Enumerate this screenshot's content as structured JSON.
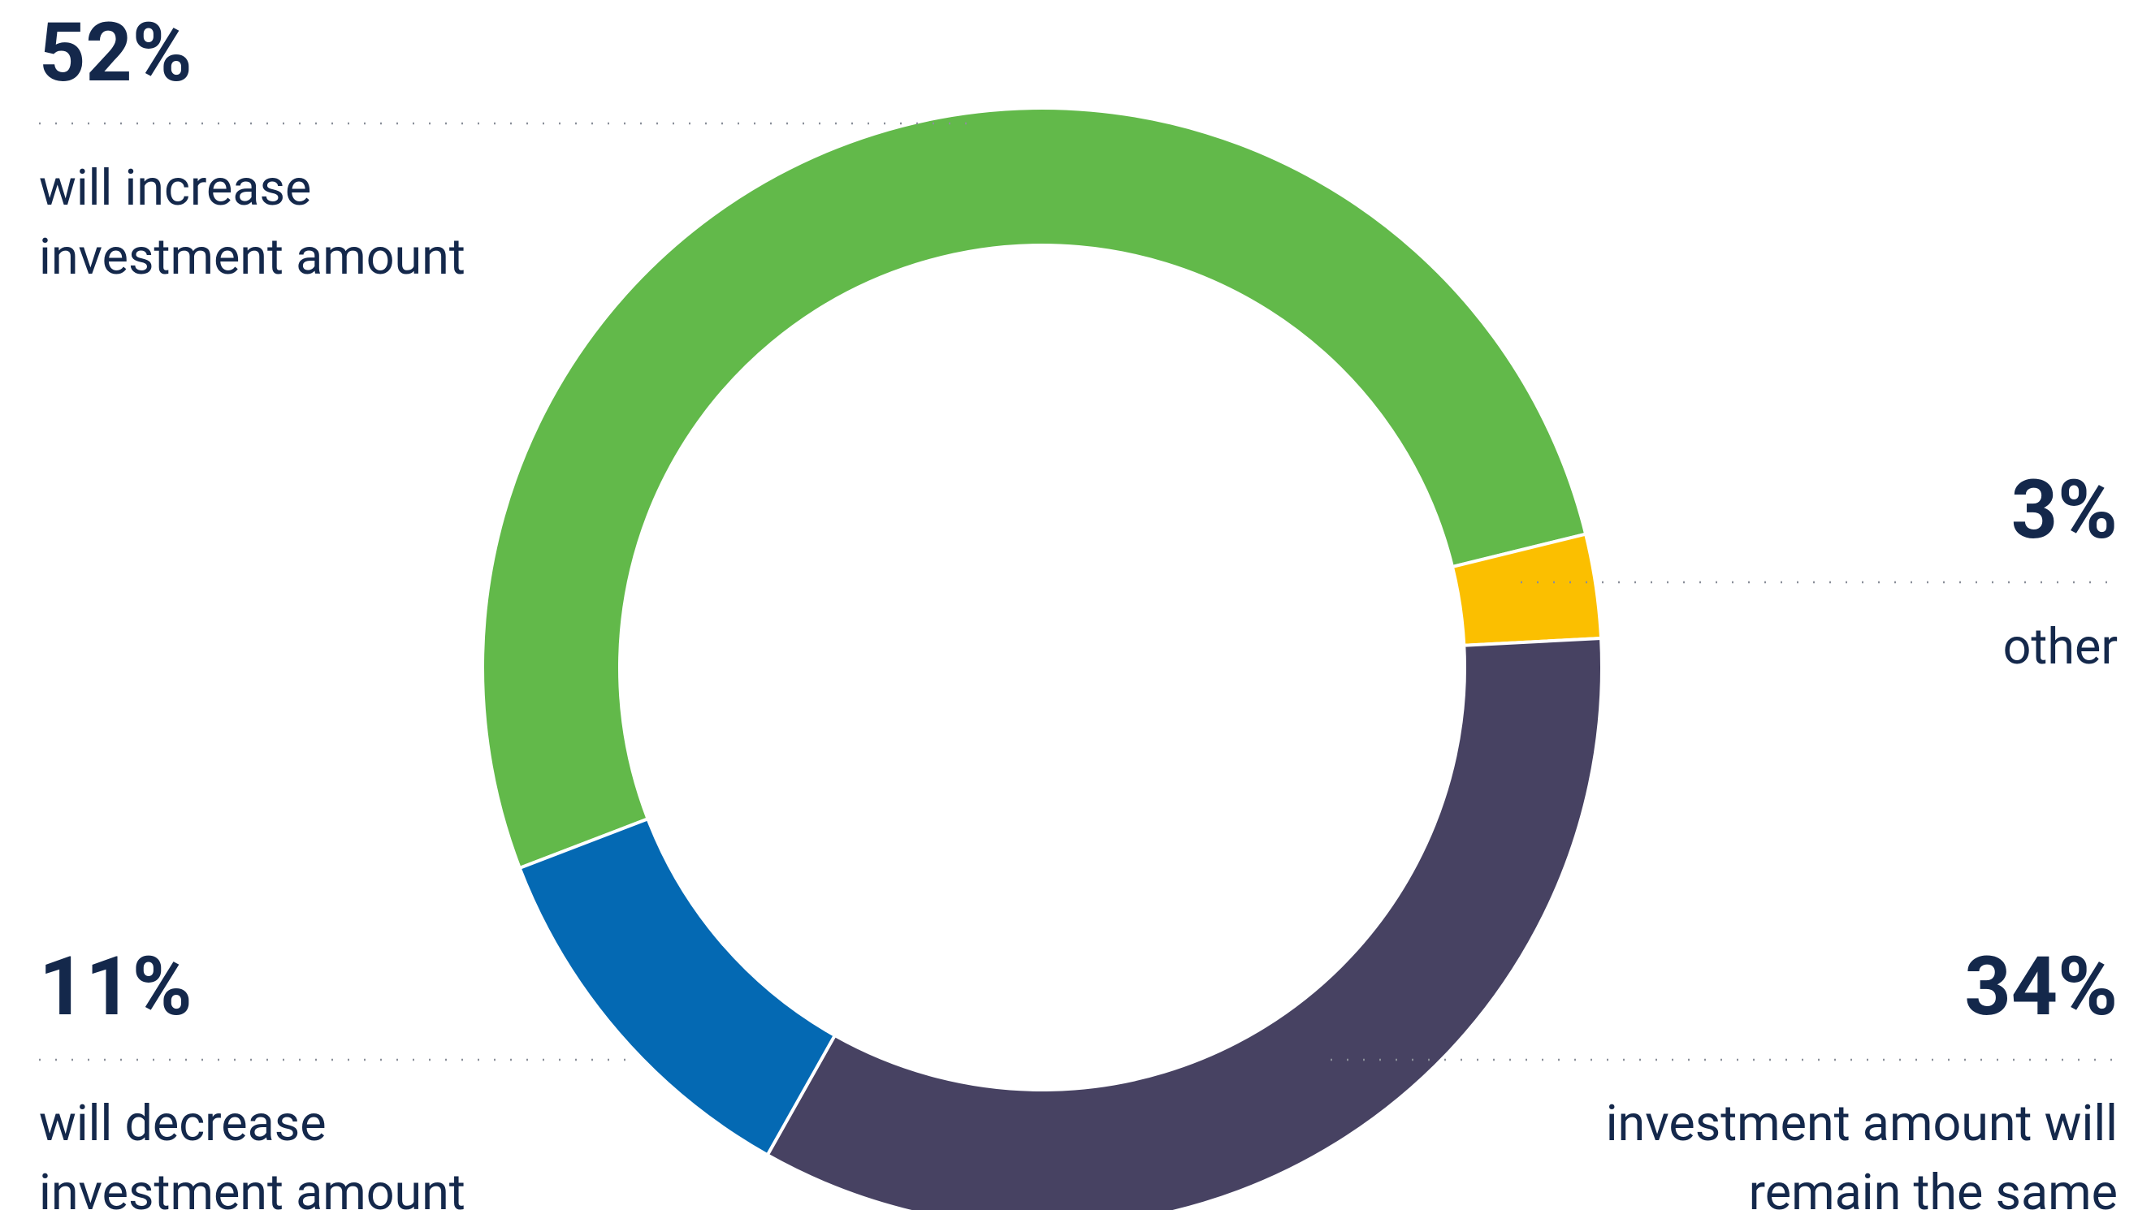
{
  "chart_data": {
    "type": "pie",
    "categories": [
      [
        "will increase",
        "investment amount"
      ],
      [
        "other"
      ],
      [
        "investment amount will",
        "remain the same"
      ],
      [
        "will decrease",
        "investment amount"
      ]
    ],
    "values": [
      52,
      3,
      34,
      11
    ],
    "value_labels": [
      "52%",
      "3%",
      "34%",
      "11%"
    ],
    "colors": [
      "#62b94a",
      "#fbbf00",
      "#474262",
      "#0469b3"
    ],
    "donut": true
  }
}
